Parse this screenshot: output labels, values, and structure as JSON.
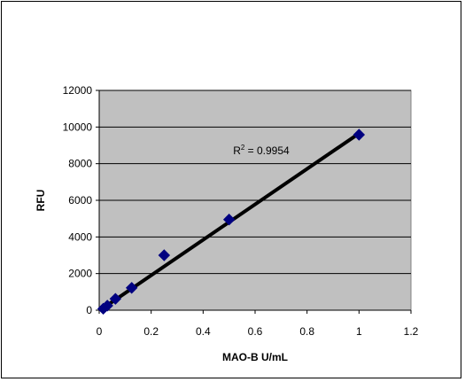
{
  "chart_data": {
    "type": "scatter",
    "title": "",
    "xlabel": "MAO-B U/mL",
    "ylabel": "RFU",
    "xlim": [
      0,
      1.2
    ],
    "ylim": [
      0,
      12000
    ],
    "x_ticks": [
      0,
      0.2,
      0.4,
      0.6,
      0.8,
      1,
      1.2
    ],
    "x_tick_labels": [
      "0",
      "0.2",
      "0.4",
      "0.6",
      "0.8",
      "1",
      "1.2"
    ],
    "y_ticks": [
      0,
      2000,
      4000,
      6000,
      8000,
      10000,
      12000
    ],
    "y_tick_labels": [
      "0",
      "2000",
      "4000",
      "6000",
      "8000",
      "10000",
      "12000"
    ],
    "grid": "horizontal",
    "legend": "none",
    "plot_background": "#C0C0C0",
    "marker_color": "#000080",
    "marker_shape": "diamond",
    "series": [
      {
        "x": [
          0.0156,
          0.0313,
          0.0625,
          0.125,
          0.25,
          0.5,
          1
        ],
        "y": [
          80,
          250,
          620,
          1220,
          3000,
          4950,
          9580
        ]
      }
    ],
    "trendline": {
      "type": "linear",
      "color": "#000000",
      "from": [
        0.0156,
        120
      ],
      "to": [
        1,
        9650
      ]
    },
    "annotation": {
      "text_base": "R",
      "text_sup": "2",
      "text_rest": " = 0.9954",
      "x": 0.72,
      "y": 8700
    }
  }
}
